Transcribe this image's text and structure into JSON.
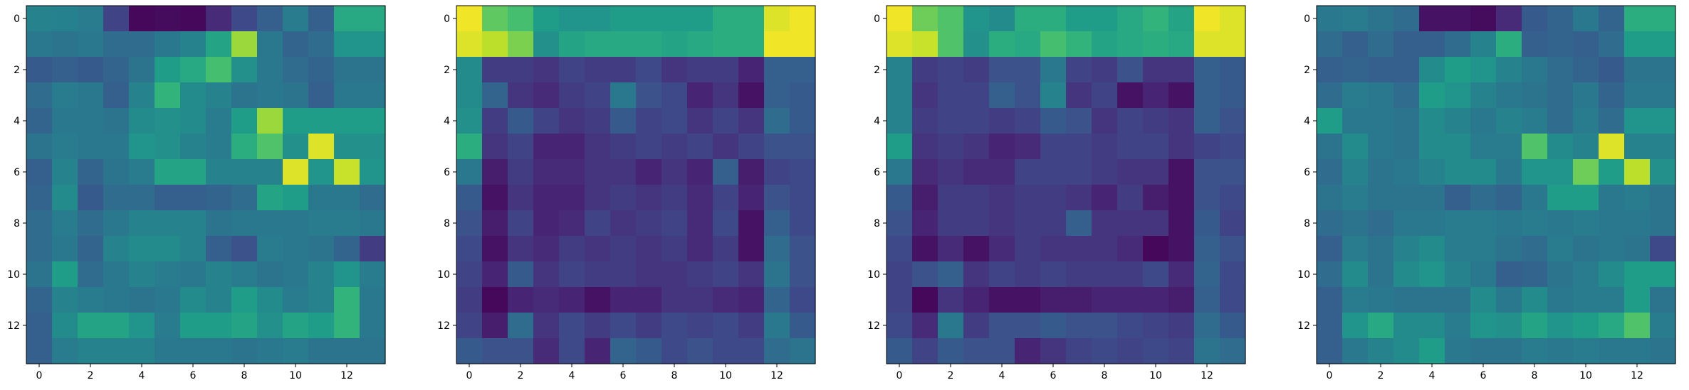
{
  "figure": {
    "background": "#ffffff",
    "colormap": "viridis"
  },
  "chart_data": [
    {
      "type": "heatmap",
      "cmap": "viridis",
      "vmin": 0,
      "vmax": 1,
      "xticks": [
        "0",
        "2",
        "4",
        "6",
        "8",
        "10",
        "12"
      ],
      "yticks": [
        "0",
        "2",
        "4",
        "6",
        "8",
        "10",
        "12"
      ],
      "values": [
        [
          0.45,
          0.44,
          0.42,
          0.2,
          0.02,
          0.03,
          0.02,
          0.12,
          0.22,
          0.3,
          0.42,
          0.3,
          0.6,
          0.6
        ],
        [
          0.4,
          0.38,
          0.4,
          0.35,
          0.35,
          0.4,
          0.45,
          0.58,
          0.85,
          0.4,
          0.32,
          0.35,
          0.52,
          0.52
        ],
        [
          0.28,
          0.3,
          0.28,
          0.32,
          0.38,
          0.55,
          0.6,
          0.7,
          0.5,
          0.4,
          0.35,
          0.32,
          0.38,
          0.38
        ],
        [
          0.35,
          0.42,
          0.4,
          0.3,
          0.45,
          0.65,
          0.48,
          0.45,
          0.38,
          0.4,
          0.38,
          0.3,
          0.4,
          0.4
        ],
        [
          0.32,
          0.4,
          0.4,
          0.38,
          0.48,
          0.5,
          0.48,
          0.42,
          0.55,
          0.85,
          0.55,
          0.55,
          0.55,
          0.55
        ],
        [
          0.38,
          0.42,
          0.4,
          0.4,
          0.52,
          0.5,
          0.45,
          0.42,
          0.62,
          0.72,
          0.5,
          0.95,
          0.5,
          0.5
        ],
        [
          0.3,
          0.45,
          0.32,
          0.38,
          0.42,
          0.58,
          0.58,
          0.45,
          0.45,
          0.45,
          0.95,
          0.52,
          0.92,
          0.52
        ],
        [
          0.32,
          0.48,
          0.28,
          0.35,
          0.35,
          0.3,
          0.3,
          0.32,
          0.35,
          0.58,
          0.55,
          0.4,
          0.4,
          0.35
        ],
        [
          0.35,
          0.42,
          0.35,
          0.4,
          0.45,
          0.45,
          0.45,
          0.38,
          0.4,
          0.4,
          0.4,
          0.42,
          0.42,
          0.4
        ],
        [
          0.35,
          0.4,
          0.32,
          0.45,
          0.48,
          0.48,
          0.45,
          0.3,
          0.25,
          0.42,
          0.4,
          0.38,
          0.32,
          0.18
        ],
        [
          0.38,
          0.55,
          0.35,
          0.4,
          0.45,
          0.42,
          0.4,
          0.45,
          0.42,
          0.38,
          0.4,
          0.45,
          0.52,
          0.42
        ],
        [
          0.32,
          0.45,
          0.42,
          0.4,
          0.38,
          0.4,
          0.48,
          0.45,
          0.55,
          0.48,
          0.42,
          0.45,
          0.65,
          0.4
        ],
        [
          0.3,
          0.48,
          0.58,
          0.58,
          0.52,
          0.42,
          0.55,
          0.55,
          0.58,
          0.5,
          0.58,
          0.55,
          0.65,
          0.4
        ],
        [
          0.3,
          0.42,
          0.45,
          0.45,
          0.45,
          0.4,
          0.4,
          0.4,
          0.38,
          0.4,
          0.42,
          0.38,
          0.38,
          0.38
        ]
      ]
    },
    {
      "type": "heatmap",
      "cmap": "viridis",
      "vmin": 0,
      "vmax": 1,
      "xticks": [
        "0",
        "2",
        "4",
        "6",
        "8",
        "10",
        "12"
      ],
      "yticks": [
        "0",
        "2",
        "4",
        "6",
        "8",
        "10",
        "12"
      ],
      "values": [
        [
          0.98,
          0.75,
          0.7,
          0.55,
          0.52,
          0.52,
          0.55,
          0.55,
          0.55,
          0.55,
          0.62,
          0.62,
          0.95,
          0.98
        ],
        [
          0.95,
          0.9,
          0.8,
          0.5,
          0.58,
          0.6,
          0.6,
          0.6,
          0.58,
          0.6,
          0.62,
          0.62,
          0.98,
          0.98
        ],
        [
          0.48,
          0.18,
          0.18,
          0.15,
          0.2,
          0.18,
          0.18,
          0.22,
          0.15,
          0.18,
          0.18,
          0.1,
          0.3,
          0.3
        ],
        [
          0.48,
          0.32,
          0.15,
          0.12,
          0.18,
          0.2,
          0.4,
          0.25,
          0.22,
          0.1,
          0.15,
          0.05,
          0.3,
          0.28
        ],
        [
          0.5,
          0.18,
          0.28,
          0.2,
          0.15,
          0.18,
          0.28,
          0.2,
          0.22,
          0.15,
          0.2,
          0.15,
          0.35,
          0.28
        ],
        [
          0.62,
          0.15,
          0.2,
          0.1,
          0.1,
          0.15,
          0.18,
          0.2,
          0.18,
          0.2,
          0.15,
          0.2,
          0.25,
          0.25
        ],
        [
          0.4,
          0.08,
          0.18,
          0.12,
          0.12,
          0.15,
          0.15,
          0.1,
          0.15,
          0.1,
          0.3,
          0.08,
          0.2,
          0.22
        ],
        [
          0.28,
          0.05,
          0.15,
          0.1,
          0.1,
          0.15,
          0.18,
          0.15,
          0.18,
          0.12,
          0.2,
          0.1,
          0.25,
          0.22
        ],
        [
          0.25,
          0.08,
          0.2,
          0.1,
          0.12,
          0.2,
          0.15,
          0.18,
          0.2,
          0.12,
          0.22,
          0.05,
          0.3,
          0.22
        ],
        [
          0.22,
          0.05,
          0.15,
          0.12,
          0.18,
          0.15,
          0.18,
          0.15,
          0.18,
          0.12,
          0.18,
          0.05,
          0.35,
          0.25
        ],
        [
          0.2,
          0.1,
          0.28,
          0.15,
          0.2,
          0.18,
          0.18,
          0.15,
          0.15,
          0.18,
          0.2,
          0.15,
          0.38,
          0.25
        ],
        [
          0.18,
          0.02,
          0.1,
          0.12,
          0.1,
          0.05,
          0.1,
          0.1,
          0.15,
          0.15,
          0.12,
          0.1,
          0.32,
          0.22
        ],
        [
          0.2,
          0.08,
          0.35,
          0.15,
          0.22,
          0.18,
          0.22,
          0.18,
          0.22,
          0.2,
          0.22,
          0.18,
          0.4,
          0.28
        ],
        [
          0.28,
          0.25,
          0.25,
          0.12,
          0.22,
          0.1,
          0.32,
          0.28,
          0.22,
          0.25,
          0.22,
          0.22,
          0.35,
          0.38
        ]
      ]
    },
    {
      "type": "heatmap",
      "cmap": "viridis",
      "vmin": 0,
      "vmax": 1,
      "xticks": [
        "0",
        "2",
        "4",
        "6",
        "8",
        "10",
        "12"
      ],
      "yticks": [
        "0",
        "2",
        "4",
        "6",
        "8",
        "10",
        "12"
      ],
      "values": [
        [
          0.98,
          0.78,
          0.72,
          0.52,
          0.48,
          0.62,
          0.62,
          0.55,
          0.55,
          0.6,
          0.65,
          0.58,
          0.98,
          0.95
        ],
        [
          0.95,
          0.92,
          0.72,
          0.5,
          0.62,
          0.6,
          0.7,
          0.65,
          0.58,
          0.6,
          0.62,
          0.6,
          0.95,
          0.95
        ],
        [
          0.45,
          0.18,
          0.2,
          0.18,
          0.25,
          0.25,
          0.4,
          0.2,
          0.18,
          0.25,
          0.15,
          0.15,
          0.3,
          0.28
        ],
        [
          0.45,
          0.15,
          0.2,
          0.2,
          0.3,
          0.25,
          0.45,
          0.15,
          0.2,
          0.05,
          0.1,
          0.05,
          0.3,
          0.28
        ],
        [
          0.45,
          0.18,
          0.2,
          0.2,
          0.18,
          0.2,
          0.28,
          0.25,
          0.15,
          0.2,
          0.18,
          0.15,
          0.3,
          0.25
        ],
        [
          0.55,
          0.15,
          0.18,
          0.15,
          0.1,
          0.12,
          0.2,
          0.2,
          0.18,
          0.2,
          0.2,
          0.15,
          0.2,
          0.22
        ],
        [
          0.4,
          0.12,
          0.15,
          0.12,
          0.12,
          0.2,
          0.2,
          0.2,
          0.18,
          0.15,
          0.15,
          0.05,
          0.25,
          0.25
        ],
        [
          0.28,
          0.08,
          0.18,
          0.18,
          0.15,
          0.18,
          0.18,
          0.15,
          0.1,
          0.18,
          0.08,
          0.05,
          0.25,
          0.22
        ],
        [
          0.25,
          0.1,
          0.18,
          0.18,
          0.15,
          0.18,
          0.18,
          0.3,
          0.15,
          0.15,
          0.15,
          0.05,
          0.28,
          0.2
        ],
        [
          0.22,
          0.05,
          0.12,
          0.05,
          0.12,
          0.18,
          0.15,
          0.15,
          0.15,
          0.12,
          0.02,
          0.05,
          0.3,
          0.25
        ],
        [
          0.2,
          0.25,
          0.3,
          0.15,
          0.2,
          0.18,
          0.2,
          0.18,
          0.18,
          0.18,
          0.22,
          0.12,
          0.32,
          0.22
        ],
        [
          0.2,
          0.02,
          0.15,
          0.1,
          0.05,
          0.05,
          0.08,
          0.08,
          0.1,
          0.1,
          0.1,
          0.08,
          0.3,
          0.22
        ],
        [
          0.22,
          0.12,
          0.4,
          0.18,
          0.25,
          0.25,
          0.28,
          0.25,
          0.25,
          0.22,
          0.2,
          0.18,
          0.35,
          0.28
        ],
        [
          0.28,
          0.2,
          0.28,
          0.25,
          0.25,
          0.1,
          0.15,
          0.2,
          0.22,
          0.2,
          0.22,
          0.2,
          0.38,
          0.35
        ]
      ]
    },
    {
      "type": "heatmap",
      "cmap": "viridis",
      "vmin": 0,
      "vmax": 1,
      "xticks": [
        "0",
        "2",
        "4",
        "6",
        "8",
        "10",
        "12"
      ],
      "yticks": [
        "0",
        "2",
        "4",
        "6",
        "8",
        "10",
        "12"
      ],
      "values": [
        [
          0.4,
          0.42,
          0.38,
          0.35,
          0.05,
          0.05,
          0.03,
          0.12,
          0.28,
          0.32,
          0.4,
          0.32,
          0.62,
          0.62
        ],
        [
          0.35,
          0.3,
          0.35,
          0.3,
          0.3,
          0.35,
          0.45,
          0.62,
          0.3,
          0.32,
          0.3,
          0.35,
          0.55,
          0.55
        ],
        [
          0.3,
          0.32,
          0.3,
          0.3,
          0.48,
          0.55,
          0.52,
          0.45,
          0.4,
          0.35,
          0.32,
          0.28,
          0.38,
          0.38
        ],
        [
          0.35,
          0.42,
          0.4,
          0.35,
          0.55,
          0.52,
          0.45,
          0.4,
          0.38,
          0.35,
          0.4,
          0.32,
          0.4,
          0.4
        ],
        [
          0.55,
          0.4,
          0.4,
          0.38,
          0.48,
          0.45,
          0.4,
          0.45,
          0.42,
          0.35,
          0.42,
          0.35,
          0.52,
          0.52
        ],
        [
          0.38,
          0.48,
          0.4,
          0.38,
          0.48,
          0.48,
          0.42,
          0.42,
          0.72,
          0.48,
          0.45,
          0.95,
          0.45,
          0.45
        ],
        [
          0.35,
          0.45,
          0.38,
          0.4,
          0.45,
          0.48,
          0.48,
          0.4,
          0.52,
          0.52,
          0.78,
          0.55,
          0.9,
          0.5
        ],
        [
          0.38,
          0.42,
          0.38,
          0.38,
          0.38,
          0.3,
          0.35,
          0.32,
          0.4,
          0.55,
          0.55,
          0.4,
          0.42,
          0.38
        ],
        [
          0.35,
          0.38,
          0.35,
          0.4,
          0.4,
          0.42,
          0.42,
          0.4,
          0.42,
          0.4,
          0.42,
          0.4,
          0.4,
          0.38
        ],
        [
          0.3,
          0.42,
          0.38,
          0.45,
          0.48,
          0.42,
          0.42,
          0.38,
          0.35,
          0.42,
          0.38,
          0.4,
          0.38,
          0.22
        ],
        [
          0.35,
          0.48,
          0.38,
          0.48,
          0.52,
          0.45,
          0.4,
          0.3,
          0.32,
          0.38,
          0.42,
          0.48,
          0.55,
          0.55
        ],
        [
          0.3,
          0.42,
          0.4,
          0.38,
          0.38,
          0.38,
          0.48,
          0.4,
          0.48,
          0.4,
          0.42,
          0.42,
          0.55,
          0.38
        ],
        [
          0.3,
          0.52,
          0.6,
          0.48,
          0.48,
          0.42,
          0.52,
          0.5,
          0.58,
          0.52,
          0.55,
          0.6,
          0.72,
          0.42
        ],
        [
          0.3,
          0.4,
          0.45,
          0.48,
          0.55,
          0.4,
          0.38,
          0.38,
          0.42,
          0.4,
          0.42,
          0.4,
          0.4,
          0.38
        ]
      ]
    }
  ]
}
